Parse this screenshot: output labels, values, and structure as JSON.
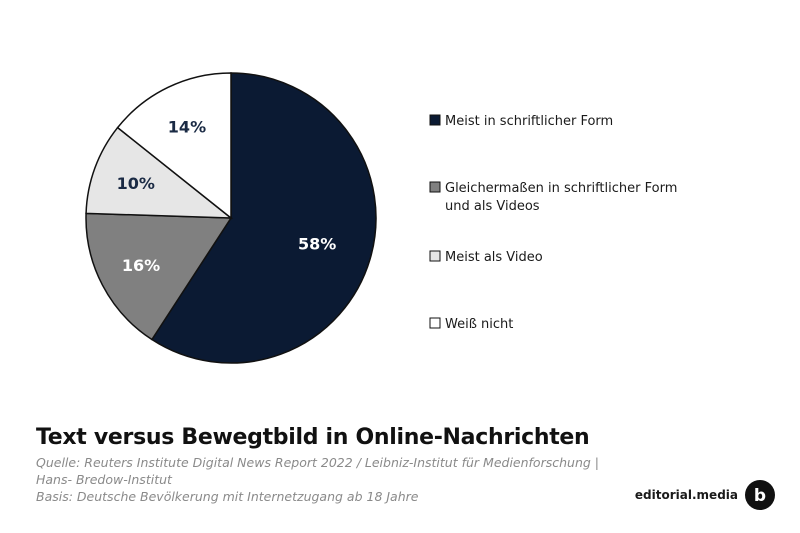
{
  "chart_data": {
    "type": "pie",
    "title": "Text versus Bewegtbild in Online-Nachrichten",
    "categories": [
      "Meist in schriftlicher Form",
      "Gleichermaßen in schriftlicher Form und als Videos",
      "Meist als Video",
      "Weiß nicht"
    ],
    "legend_lines": [
      [
        "Meist in schriftlicher Form"
      ],
      [
        "Gleichermaßen in schriftlicher Form",
        "und als Videos"
      ],
      [
        "Meist als Video"
      ],
      [
        "Weiß nicht"
      ]
    ],
    "values": [
      58,
      16,
      10,
      14
    ],
    "value_labels": [
      "58%",
      "16%",
      "10%",
      "14%"
    ],
    "colors": [
      "#0b1a33",
      "#808080",
      "#e6e6e6",
      "#ffffff"
    ],
    "label_colors": [
      "#ffffff",
      "#ffffff",
      "#1a2a44",
      "#1a2a44"
    ],
    "legend_placement": "right"
  },
  "footer": {
    "source_line1": "Quelle: Reuters Institute Digital News Report 2022 / Leibniz-Institut für Medienforschung |",
    "source_line2": "Hans- Bredow-Institut",
    "basis_line": "Basis: Deutsche Bevölkerung mit Internetzugang ab 18 Jahre"
  },
  "brand": {
    "name": "editorial.media",
    "logo_letter": "b",
    "logo_icon": "brand-logo-icon"
  }
}
